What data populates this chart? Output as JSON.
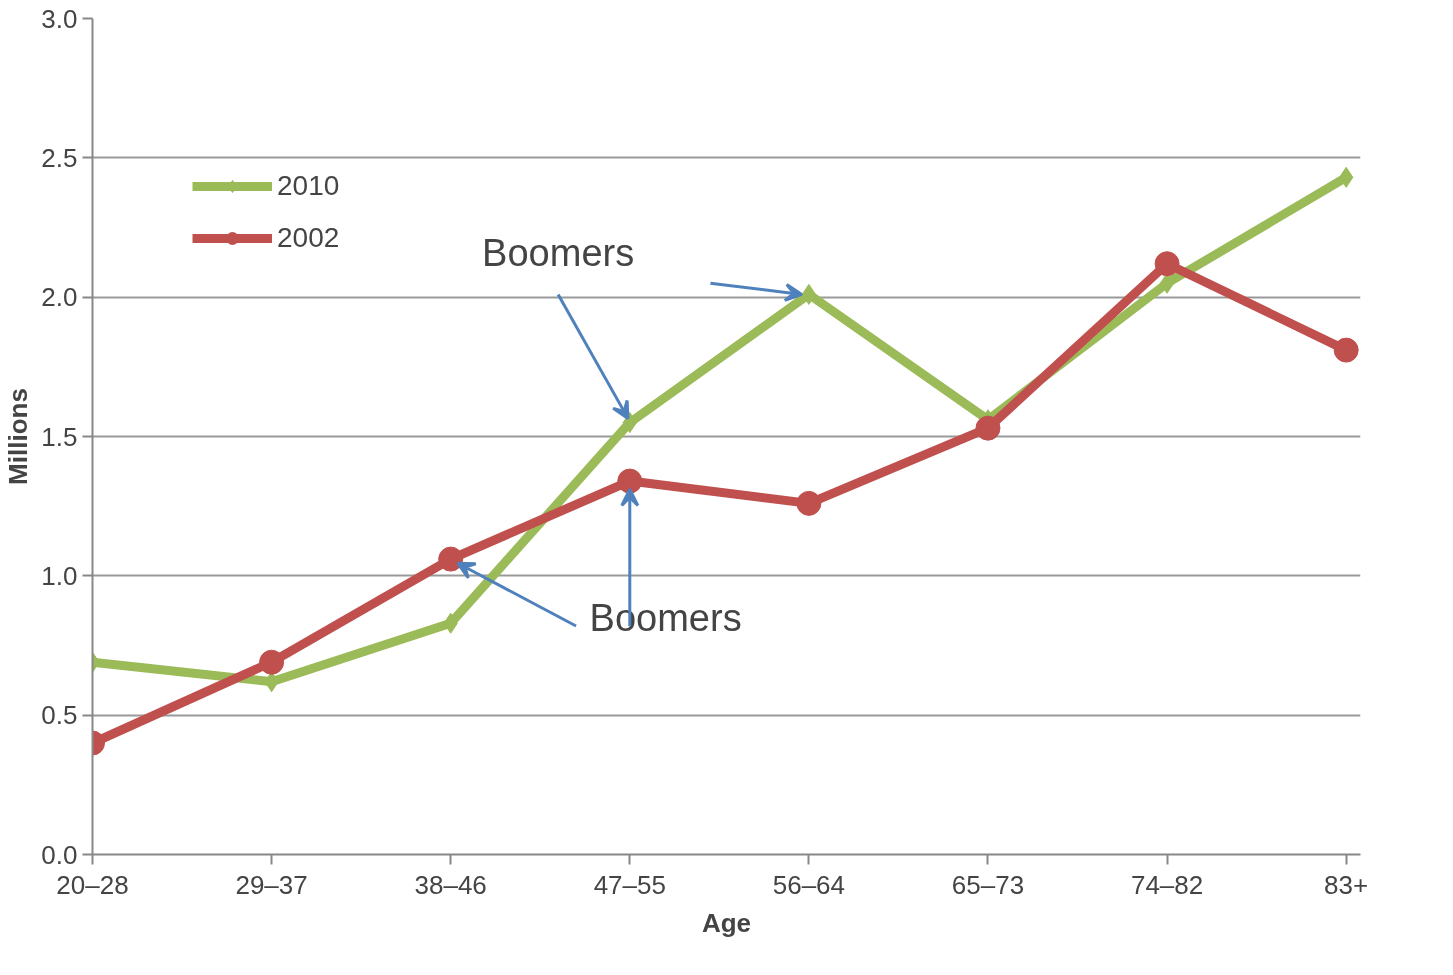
{
  "chart_data": {
    "type": "line",
    "xlabel": "Age",
    "ylabel": "Millions",
    "categories": [
      "20–28",
      "29–37",
      "38–46",
      "47–55",
      "56–64",
      "65–73",
      "74–82",
      "83+"
    ],
    "series": [
      {
        "name": "2010",
        "color": "#9bbb59",
        "marker": "diamond",
        "values": [
          0.69,
          0.62,
          0.83,
          1.55,
          2.01,
          1.56,
          2.05,
          2.43
        ]
      },
      {
        "name": "2002",
        "color": "#c0504d",
        "marker": "circle",
        "values": [
          0.4,
          0.69,
          1.06,
          1.34,
          1.26,
          1.53,
          2.12,
          1.81
        ]
      }
    ],
    "ylim": [
      0,
      3.0
    ],
    "yticks": [
      {
        "value": 0,
        "label": "0.0"
      },
      0.5,
      {
        "value": 1,
        "label": "1.0"
      },
      1.5,
      {
        "value": 2,
        "label": "2.0"
      },
      2.5,
      {
        "value": 3,
        "label": "3.0"
      }
    ],
    "grid": "y",
    "legend": "top left",
    "line_style": "solid",
    "annotations": [
      {
        "text": "Boomers",
        "x": "47–55",
        "y": 1.55
      },
      {
        "text": "Boomers",
        "x": "38–46",
        "y": 1.06
      }
    ]
  }
}
